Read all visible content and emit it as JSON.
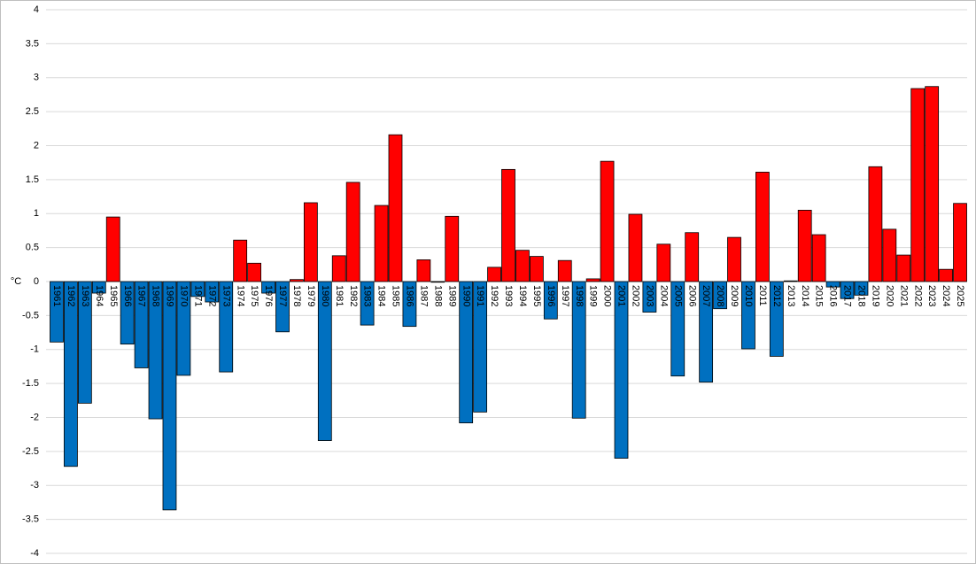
{
  "chart_data": {
    "type": "bar",
    "y_label": "°C",
    "categories": [
      "1961",
      "1962",
      "1963",
      "1964",
      "1965",
      "1966",
      "1967",
      "1968",
      "1969",
      "1970",
      "1971",
      "1972",
      "1973",
      "1974",
      "1975",
      "1976",
      "1977",
      "1978",
      "1979",
      "1980",
      "1981",
      "1982",
      "1983",
      "1984",
      "1985",
      "1986",
      "1987",
      "1988",
      "1989",
      "1990",
      "1991",
      "1992",
      "1993",
      "1994",
      "1995",
      "1996",
      "1997",
      "1998",
      "1999",
      "2000",
      "2001",
      "2002",
      "2003",
      "2004",
      "2005",
      "2006",
      "2007",
      "2008",
      "2009",
      "2010",
      "2011",
      "2012",
      "2013",
      "2014",
      "2015",
      "2016",
      "2017",
      "2018",
      "2019",
      "2020",
      "2021",
      "2022",
      "2023",
      "2024",
      "2025"
    ],
    "values": [
      -0.89,
      -2.72,
      -1.79,
      -0.17,
      0.95,
      -0.92,
      -1.27,
      -2.02,
      -3.36,
      -1.38,
      -0.22,
      -0.3,
      -1.33,
      0.61,
      0.27,
      -0.17,
      -0.74,
      0.03,
      1.16,
      -2.34,
      0.38,
      1.46,
      -0.64,
      1.12,
      2.16,
      -0.66,
      0.32,
      -0.01,
      0.96,
      -2.08,
      -1.92,
      0.21,
      1.65,
      0.46,
      0.37,
      -0.55,
      0.31,
      -2.01,
      0.04,
      1.77,
      -2.6,
      0.99,
      -0.45,
      0.55,
      -1.39,
      0.72,
      -1.48,
      -0.4,
      0.65,
      -0.99,
      1.61,
      -1.1,
      0.01,
      1.05,
      0.69,
      -0.08,
      -0.25,
      -0.2,
      1.69,
      0.77,
      0.39,
      2.84,
      2.87,
      0.18,
      1.15
    ],
    "positive_color": "#ff0000",
    "negative_color": "#0070c0",
    "ylim": [
      -4,
      4
    ],
    "yticks": [
      -4,
      -3.5,
      -3,
      -2.5,
      -2,
      -1.5,
      -1,
      -0.5,
      0,
      0.5,
      1,
      1.5,
      2,
      2.5,
      3,
      3.5,
      4
    ],
    "grid": true
  }
}
